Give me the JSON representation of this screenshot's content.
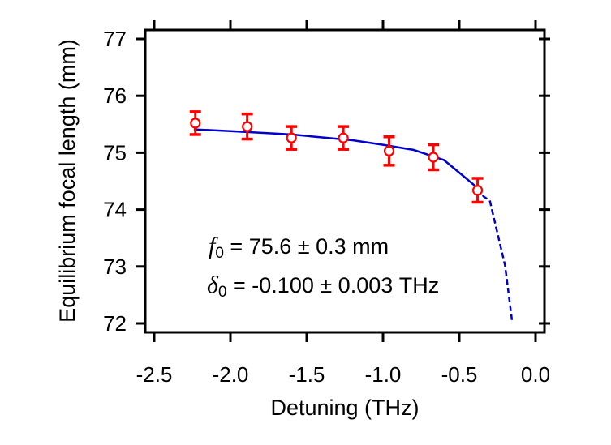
{
  "chart_data": {
    "type": "scatter",
    "xlabel": "Detuning (THz)",
    "ylabel": "Equilibrium focal length (mm)",
    "xlim": [
      -2.5,
      0.0
    ],
    "ylim": [
      72,
      77
    ],
    "xticks": [
      "-2.5",
      "-2.0",
      "-1.5",
      "-1.0",
      "-0.5",
      "0.0"
    ],
    "xtick_values": [
      -2.5,
      -2.0,
      -1.5,
      -1.0,
      -0.5,
      0.0
    ],
    "yticks": [
      "72",
      "73",
      "74",
      "75",
      "76",
      "77"
    ],
    "ytick_values": [
      72,
      73,
      74,
      75,
      76,
      77
    ],
    "grid": false,
    "colors": {
      "points": "#ff0000",
      "fit": "#0000cc",
      "axes": "#000000"
    },
    "points": {
      "marker": "open-circle",
      "x": [
        -2.23,
        -1.89,
        -1.6,
        -1.26,
        -0.96,
        -0.67,
        -0.38
      ],
      "y": [
        75.52,
        75.46,
        75.26,
        75.26,
        75.03,
        74.92,
        74.34
      ],
      "yerr": [
        0.2,
        0.22,
        0.2,
        0.2,
        0.25,
        0.22,
        0.21
      ]
    },
    "fit": {
      "solid": {
        "x": [
          -2.24,
          -2.0,
          -1.6,
          -1.2,
          -1.0,
          -0.8,
          -0.6,
          -0.5,
          -0.38
        ],
        "y": [
          75.41,
          75.38,
          75.32,
          75.22,
          75.14,
          75.05,
          74.87,
          74.65,
          74.38
        ]
      },
      "dashed": {
        "x": [
          -0.38,
          -0.34,
          -0.3,
          -0.25,
          -0.2,
          -0.154
        ],
        "y": [
          74.38,
          74.23,
          74.16,
          73.59,
          73.02,
          72.05
        ]
      }
    },
    "annotations": {
      "f0_symbol": "f",
      "f0_sub": "0",
      "f0_text": " = 75.6 ± 0.3 mm",
      "d0_symbol": "δ",
      "d0_sub": "0",
      "d0_text": " = -0.100 ± 0.003 THz"
    }
  }
}
